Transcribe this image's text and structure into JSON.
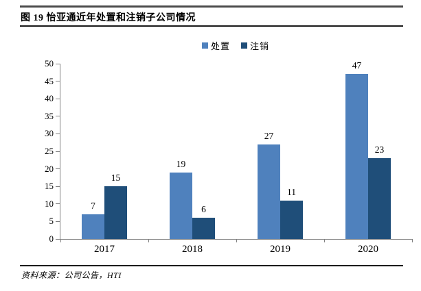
{
  "figure": {
    "title": "图 19 怡亚通近年处置和注销子公司情况",
    "source": "资料来源：公司公告，HTI"
  },
  "chart_data": {
    "type": "bar",
    "title": "怡亚通近年处置和注销子公司情况",
    "categories": [
      "2017",
      "2018",
      "2019",
      "2020"
    ],
    "series": [
      {
        "name": "处置",
        "color": "#4F81BD",
        "values": [
          7,
          19,
          27,
          47
        ]
      },
      {
        "name": "注销",
        "color": "#1F4E79",
        "values": [
          15,
          6,
          11,
          23
        ]
      }
    ],
    "ylim": [
      0,
      50
    ],
    "ytick_step": 5,
    "grid": false,
    "value_labels": true,
    "legend_position": "top-center",
    "axis_color": "#808080"
  }
}
